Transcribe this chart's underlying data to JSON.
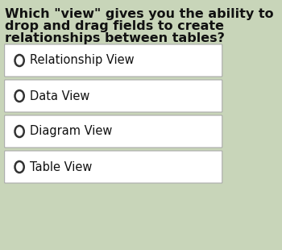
{
  "background_color": "#c8d5b9",
  "question_lines": [
    "Which \"view\" gives you the ability to",
    "drop and drag fields to create",
    "relationships between tables?"
  ],
  "options": [
    "Relationship View",
    "Data View",
    "Diagram View",
    "Table View"
  ],
  "option_box_color": "#ffffff",
  "option_border_color": "#aaaaaa",
  "circle_color": "#333333",
  "text_color": "#111111",
  "question_color": "#111111",
  "question_fontsize": 11.5,
  "option_fontsize": 10.5
}
